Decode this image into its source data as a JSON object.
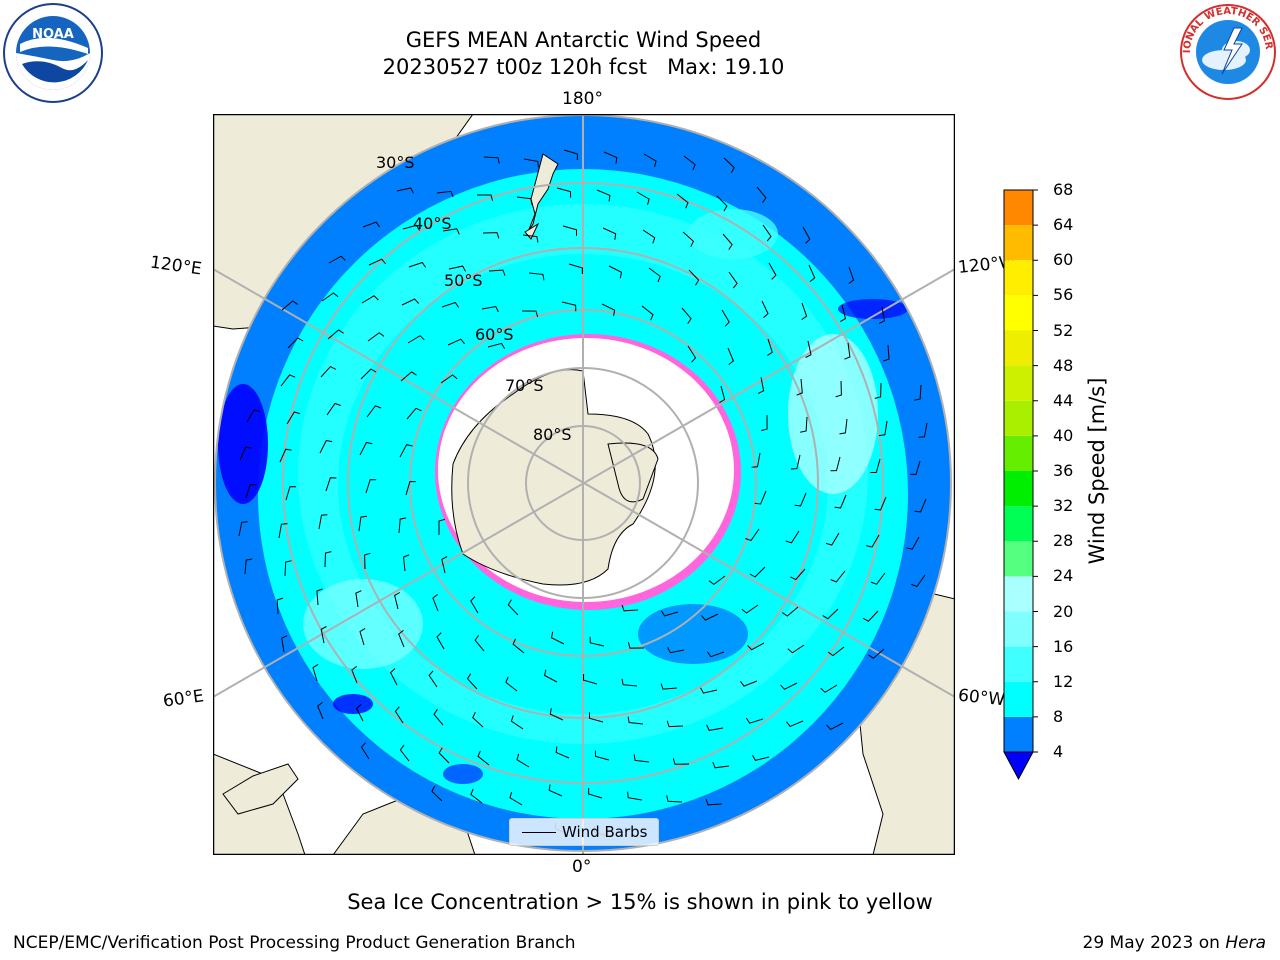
{
  "title": {
    "line1": "GEFS MEAN Antarctic Wind Speed",
    "line2": "20230527 t00z 120h fcst   Max: 19.10"
  },
  "logos": {
    "left": "NOAA",
    "right": "NATIONAL WEATHER SERVICE"
  },
  "map": {
    "projection": "south-polar-stereographic",
    "longitude_labels": {
      "top": "180°",
      "bottom": "0°",
      "left_upper": "120°E",
      "left_lower": "60°E",
      "right_upper": "120°W",
      "right_lower": "60°W"
    },
    "latitude_labels": [
      "30°S",
      "40°S",
      "50°S",
      "60°S",
      "70°S",
      "80°S"
    ],
    "legend_label": "Wind Barbs"
  },
  "colorbar": {
    "label": "Wind Speed [m/s]",
    "ticks": [
      "68",
      "64",
      "60",
      "56",
      "52",
      "48",
      "44",
      "40",
      "36",
      "32",
      "28",
      "24",
      "20",
      "16",
      "12",
      "8",
      "4"
    ],
    "colors": [
      "#0000ff",
      "#0080ff",
      "#00ffff",
      "#40ffff",
      "#80ffff",
      "#aaffff",
      "#55ff80",
      "#00ff55",
      "#00ee00",
      "#66ee00",
      "#aaee00",
      "#ccf000",
      "#eeee00",
      "#ffff00",
      "#ffee00",
      "#ffbb00",
      "#ff8800",
      "#ff6600",
      "#ff3300",
      "#ff0000"
    ],
    "colors_order": "bottom-to-top, first entry is the under-range triangle"
  },
  "caption": "Sea Ice Concentration > 15% is shown in pink to yellow",
  "footer": {
    "left": "NCEP/EMC/Verification Post Processing Product Generation Branch",
    "right_date": "29 May 2023 on ",
    "right_host": "Hera"
  }
}
